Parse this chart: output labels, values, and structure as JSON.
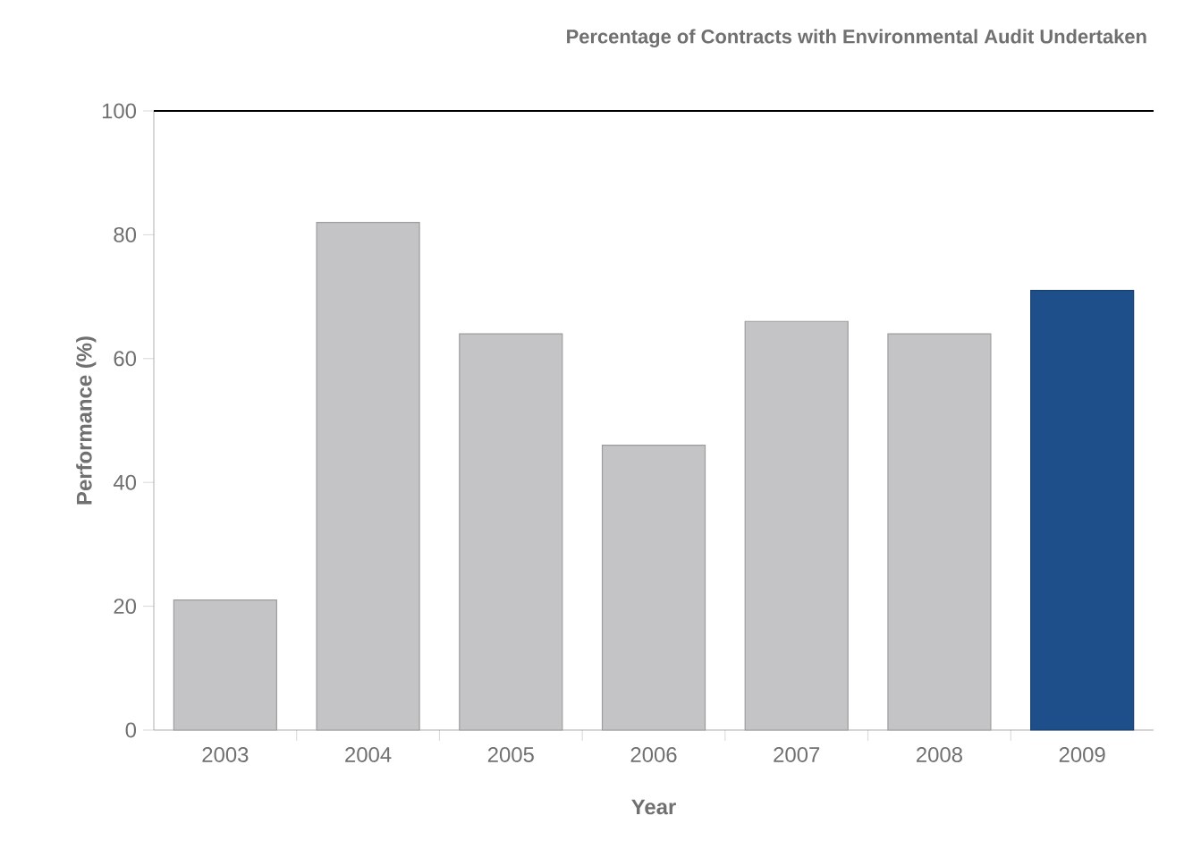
{
  "chart_data": {
    "type": "bar",
    "title": "Percentage of Contracts with Environmental Audit Undertaken",
    "xlabel": "Year",
    "ylabel": "Performance (%)",
    "categories": [
      "2003",
      "2004",
      "2005",
      "2006",
      "2007",
      "2008",
      "2009"
    ],
    "values": [
      21,
      82,
      64,
      46,
      66,
      64,
      71
    ],
    "colors": [
      "#c4c4c6",
      "#c4c4c6",
      "#c4c4c6",
      "#c4c4c6",
      "#c4c4c6",
      "#c4c4c6",
      "#1f4f8a"
    ],
    "ylim": [
      0,
      100
    ],
    "yticks": [
      0,
      20,
      40,
      60,
      80,
      100
    ],
    "grid": false
  }
}
